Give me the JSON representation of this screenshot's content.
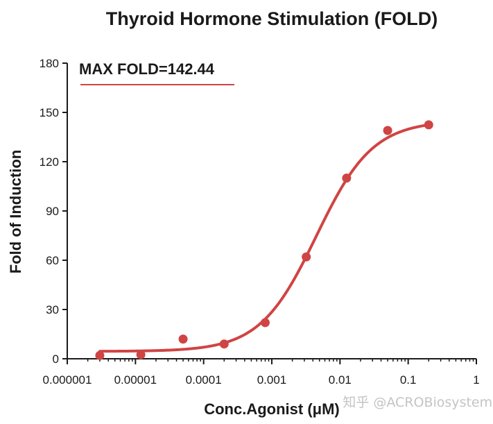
{
  "chart_data": {
    "type": "scatter",
    "title": "Thyroid Hormone Stimulation (FOLD)",
    "xlabel": "Conc.Agonist (μM)",
    "ylabel": "Fold of Induction",
    "xscale": "log",
    "xlim": [
      1e-06,
      1
    ],
    "ylim": [
      0,
      180
    ],
    "x_ticks": [
      1e-06,
      1e-05,
      0.0001,
      0.001,
      0.01,
      0.1,
      1
    ],
    "x_tick_labels": [
      "0.000001",
      "0.00001",
      "0.0001",
      "0.001",
      "0.01",
      "0.1",
      "1"
    ],
    "y_ticks": [
      0,
      30,
      60,
      90,
      120,
      150,
      180
    ],
    "y_tick_labels": [
      "0",
      "30",
      "60",
      "90",
      "120",
      "150",
      "180"
    ],
    "series": [
      {
        "name": "Fold of Induction",
        "color": "#d04444",
        "points": [
          {
            "x": 3e-06,
            "y": 2
          },
          {
            "x": 1.2e-05,
            "y": 2.5
          },
          {
            "x": 5e-05,
            "y": 12
          },
          {
            "x": 0.0002,
            "y": 9
          },
          {
            "x": 0.0008,
            "y": 22
          },
          {
            "x": 0.0032,
            "y": 62
          },
          {
            "x": 0.0125,
            "y": 110
          },
          {
            "x": 0.05,
            "y": 139
          },
          {
            "x": 0.2,
            "y": 142.44
          }
        ],
        "fit": {
          "model": "4PL",
          "bottom": 4.5,
          "top": 145,
          "ec50": 0.0045,
          "hill": 1.05,
          "x_range": [
            3e-06,
            0.2
          ]
        }
      }
    ],
    "annotation": {
      "text": "MAX FOLD=142.44",
      "underline_color": "#d04444"
    }
  },
  "watermark": {
    "text": "知乎 @ACROBiosystems"
  }
}
